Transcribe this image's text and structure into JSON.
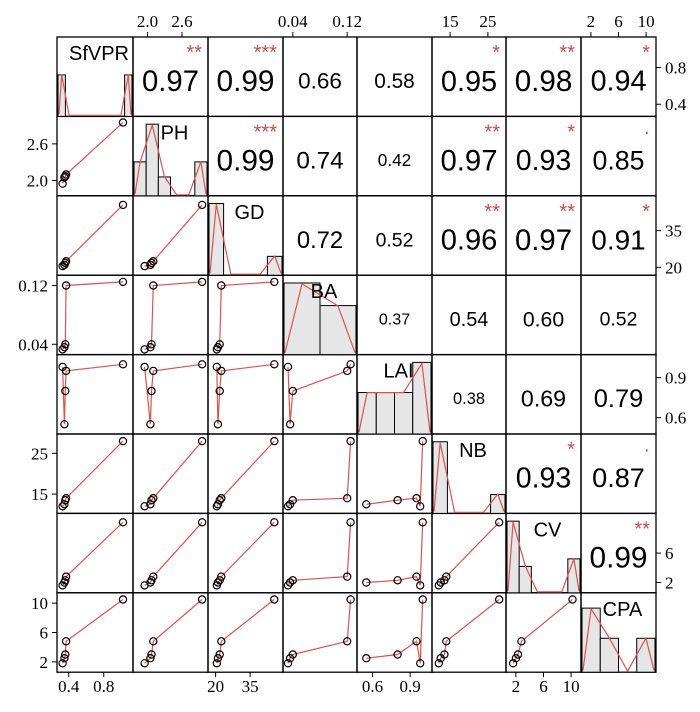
{
  "chart_data": {
    "type": "scatter-matrix",
    "variables": [
      {
        "name": "SfVPR",
        "range": [
          0.3,
          1.1
        ],
        "ticks": [
          "0.4",
          "0.8"
        ],
        "hist": [
          0.55,
          0,
          0,
          0,
          0,
          0,
          0,
          0,
          0,
          0.55
        ],
        "ticks_right": [
          "0.8",
          "0.4"
        ]
      },
      {
        "name": "PH",
        "range": [
          1.8,
          3.0
        ],
        "ticks": [
          "2.0",
          "2.6"
        ],
        "hist": [
          0.45,
          0.95,
          0.25,
          0,
          0,
          0.45
        ]
      },
      {
        "name": "GD",
        "range": [
          18,
          48
        ],
        "ticks": [
          "20",
          "35"
        ],
        "hist": [
          0.95,
          0,
          0,
          0,
          0.25
        ],
        "ticks_right": [
          "35",
          "20"
        ]
      },
      {
        "name": "BA",
        "range": [
          0.03,
          0.13
        ],
        "ticks": [
          "0.04",
          "0.12"
        ],
        "hist": [
          0.95,
          0.65
        ]
      },
      {
        "name": "LAI",
        "range": [
          0.5,
          1.05
        ],
        "ticks": [
          "0.6",
          "0.9"
        ],
        "hist": [
          0.55,
          0.55,
          0.55,
          0.95
        ],
        "ticks_right": [
          "0.9",
          "0.6"
        ]
      },
      {
        "name": "NB",
        "range": [
          11,
          29
        ],
        "ticks": [
          "15",
          "25"
        ],
        "hist": [
          0.95,
          0,
          0,
          0,
          0.25
        ]
      },
      {
        "name": "CV",
        "range": [
          1,
          11
        ],
        "ticks": [
          "2",
          "6",
          "10"
        ],
        "hist": [
          0.95,
          0.35,
          0,
          0,
          0,
          0.45
        ],
        "ticks_right": [
          "6",
          "2"
        ]
      },
      {
        "name": "CPA",
        "range": [
          1,
          11
        ],
        "ticks": [
          "2",
          "6",
          "10"
        ],
        "hist": [
          0.85,
          0.45,
          0,
          0.45
        ]
      }
    ],
    "upper_cells": [
      {
        "row": 0,
        "col": 1,
        "r": "0.97",
        "stars": "**"
      },
      {
        "row": 0,
        "col": 2,
        "r": "0.99",
        "stars": "***"
      },
      {
        "row": 0,
        "col": 3,
        "r": "0.66",
        "stars": ""
      },
      {
        "row": 0,
        "col": 4,
        "r": "0.58",
        "stars": ""
      },
      {
        "row": 0,
        "col": 5,
        "r": "0.95",
        "stars": "*"
      },
      {
        "row": 0,
        "col": 6,
        "r": "0.98",
        "stars": "**"
      },
      {
        "row": 0,
        "col": 7,
        "r": "0.94",
        "stars": "*"
      },
      {
        "row": 1,
        "col": 2,
        "r": "0.99",
        "stars": "***"
      },
      {
        "row": 1,
        "col": 3,
        "r": "0.74",
        "stars": ""
      },
      {
        "row": 1,
        "col": 4,
        "r": "0.42",
        "stars": ""
      },
      {
        "row": 1,
        "col": 5,
        "r": "0.97",
        "stars": "**"
      },
      {
        "row": 1,
        "col": 6,
        "r": "0.93",
        "stars": "*"
      },
      {
        "row": 1,
        "col": 7,
        "r": "0.85",
        "stars": "·"
      },
      {
        "row": 2,
        "col": 3,
        "r": "0.72",
        "stars": ""
      },
      {
        "row": 2,
        "col": 4,
        "r": "0.52",
        "stars": ""
      },
      {
        "row": 2,
        "col": 5,
        "r": "0.96",
        "stars": "**"
      },
      {
        "row": 2,
        "col": 6,
        "r": "0.97",
        "stars": "**"
      },
      {
        "row": 2,
        "col": 7,
        "r": "0.91",
        "stars": "*"
      },
      {
        "row": 3,
        "col": 4,
        "r": "0.37",
        "stars": ""
      },
      {
        "row": 3,
        "col": 5,
        "r": "0.54",
        "stars": ""
      },
      {
        "row": 3,
        "col": 6,
        "r": "0.60",
        "stars": ""
      },
      {
        "row": 3,
        "col": 7,
        "r": "0.52",
        "stars": ""
      },
      {
        "row": 4,
        "col": 5,
        "r": "0.38",
        "stars": ""
      },
      {
        "row": 4,
        "col": 6,
        "r": "0.69",
        "stars": ""
      },
      {
        "row": 4,
        "col": 7,
        "r": "0.79",
        "stars": ""
      },
      {
        "row": 5,
        "col": 6,
        "r": "0.93",
        "stars": "*"
      },
      {
        "row": 5,
        "col": 7,
        "r": "0.87",
        "stars": "·"
      },
      {
        "row": 6,
        "col": 7,
        "r": "0.99",
        "stars": "**"
      }
    ],
    "observations": {
      "SfVPR": [
        0.33,
        0.35,
        0.36,
        0.37,
        1.02
      ],
      "PH": [
        1.95,
        2.05,
        2.07,
        2.1,
        2.95
      ],
      "GD": [
        20.5,
        21.0,
        21.8,
        22.5,
        45.5
      ],
      "BA": [
        0.033,
        0.036,
        0.04,
        0.12,
        0.125
      ],
      "LAI": [
        0.98,
        0.55,
        0.8,
        0.95,
        1.0
      ],
      "NB": [
        12.0,
        12.5,
        13.5,
        14.0,
        28.0
      ],
      "CV": [
        1.6,
        2.0,
        2.3,
        2.8,
        10.2
      ],
      "CPA": [
        1.8,
        2.5,
        3.0,
        4.8,
        10.5
      ]
    },
    "colors": {
      "line": "#d9534f",
      "star": "#c0504d",
      "bar_fill": "#e6e6e6",
      "frame": "#000000"
    }
  }
}
